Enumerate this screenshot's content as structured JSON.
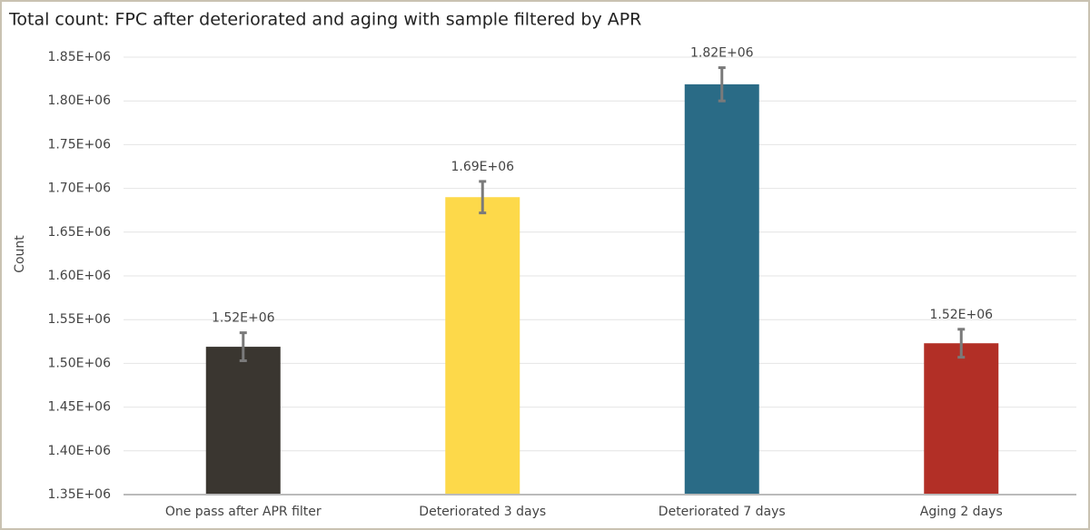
{
  "chart_data": {
    "type": "bar",
    "title": "Total count: FPC after deteriorated and aging with sample filtered by APR",
    "y_label": "Count",
    "categories": [
      "One pass after APR filter",
      "Deteriorated 3 days",
      "Deteriorated 7 days",
      "Aging 2 days"
    ],
    "values": [
      1519000,
      1690000,
      1819000,
      1523000
    ],
    "value_labels": [
      "1.52E+06",
      "1.69E+06",
      "1.82E+06",
      "1.52E+06"
    ],
    "errors": [
      16000,
      18000,
      19000,
      16000
    ],
    "colors": [
      "#3a3630",
      "#fdd94a",
      "#2a6b86",
      "#b22f26"
    ],
    "ylim": [
      1350000,
      1850000
    ],
    "yticks": [
      {
        "value": 1350000,
        "label": "1.35E+06"
      },
      {
        "value": 1400000,
        "label": "1.40E+06"
      },
      {
        "value": 1450000,
        "label": "1.45E+06"
      },
      {
        "value": 1500000,
        "label": "1.50E+06"
      },
      {
        "value": 1550000,
        "label": "1.55E+06"
      },
      {
        "value": 1600000,
        "label": "1.60E+06"
      },
      {
        "value": 1650000,
        "label": "1.65E+06"
      },
      {
        "value": 1700000,
        "label": "1.70E+06"
      },
      {
        "value": 1750000,
        "label": "1.75E+06"
      },
      {
        "value": 1800000,
        "label": "1.80E+06"
      },
      {
        "value": 1850000,
        "label": "1.85E+06"
      }
    ],
    "grid": true
  }
}
